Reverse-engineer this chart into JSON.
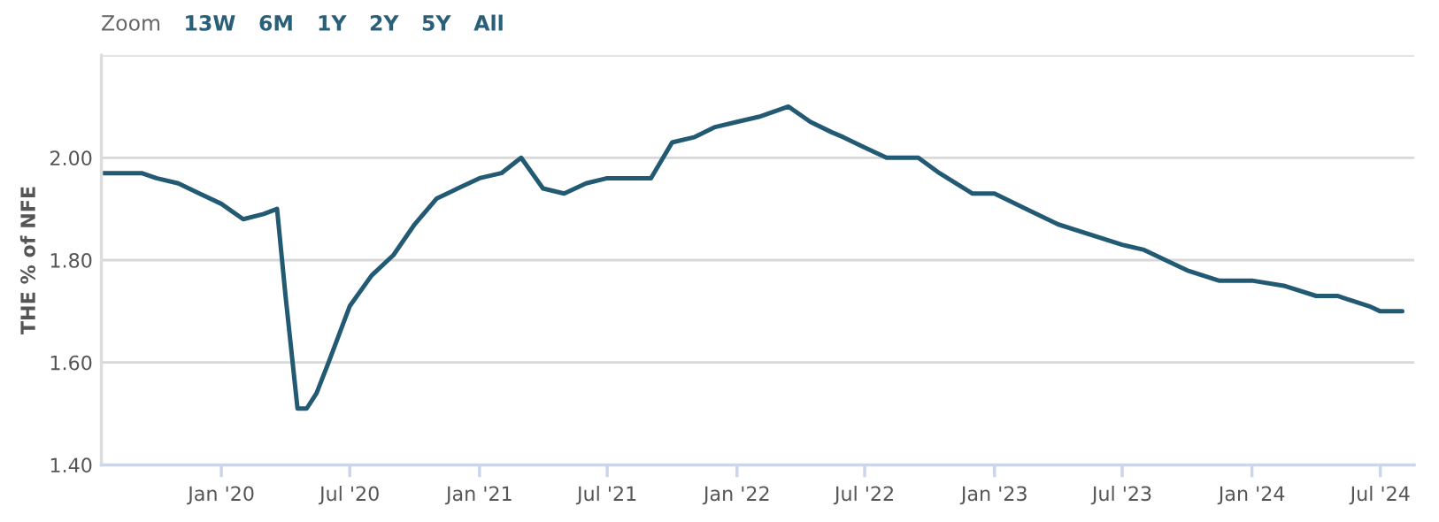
{
  "chart_data": {
    "type": "line",
    "ylabel": "THE % of NFE",
    "annotations": [
      "Zoom",
      "13W",
      "6M",
      "1Y",
      "2Y",
      "5Y",
      "All"
    ],
    "x": [
      "2019-07-15",
      "2019-08-15",
      "2019-09-10",
      "2019-10-01",
      "2019-11-01",
      "2019-12-01",
      "2020-01-01",
      "2020-02-01",
      "2020-03-01",
      "2020-03-20",
      "2020-04-01",
      "2020-04-18",
      "2020-05-01",
      "2020-05-15",
      "2020-06-01",
      "2020-07-01",
      "2020-08-01",
      "2020-09-01",
      "2020-10-01",
      "2020-11-01",
      "2020-12-01",
      "2021-01-01",
      "2021-02-01",
      "2021-03-01",
      "2021-04-01",
      "2021-05-01",
      "2021-06-01",
      "2021-07-01",
      "2021-09-01",
      "2021-10-01",
      "2021-11-01",
      "2021-12-01",
      "2022-01-01",
      "2022-02-01",
      "2022-03-15",
      "2022-04-15",
      "2022-05-15",
      "2022-06-01",
      "2022-07-01",
      "2022-08-01",
      "2022-09-15",
      "2022-10-15",
      "2022-12-01",
      "2023-01-01",
      "2023-02-15",
      "2023-04-01",
      "2023-07-01",
      "2023-08-01",
      "2023-10-01",
      "2023-11-15",
      "2024-01-01",
      "2024-02-15",
      "2024-04-01",
      "2024-05-01",
      "2024-06-15",
      "2024-07-01",
      "2024-08-01"
    ],
    "series": [
      {
        "color": "#235a73",
        "values": [
          1.97,
          1.97,
          1.97,
          1.96,
          1.95,
          1.93,
          1.91,
          1.88,
          1.89,
          1.9,
          1.73,
          1.51,
          1.51,
          1.54,
          1.6,
          1.71,
          1.77,
          1.81,
          1.87,
          1.92,
          1.94,
          1.96,
          1.97,
          2.0,
          1.94,
          1.93,
          1.95,
          1.96,
          1.96,
          2.03,
          2.04,
          2.06,
          2.07,
          2.08,
          2.1,
          2.07,
          2.05,
          2.04,
          2.02,
          2.0,
          2.0,
          1.97,
          1.93,
          1.93,
          1.9,
          1.87,
          1.83,
          1.82,
          1.78,
          1.76,
          1.76,
          1.75,
          1.73,
          1.73,
          1.71,
          1.7,
          1.7
        ]
      }
    ],
    "xlim": [
      "2019-07-15",
      "2024-08-18"
    ],
    "xticks": [
      {
        "value": "2020-01-01",
        "label": "Jan '20"
      },
      {
        "value": "2020-07-01",
        "label": "Jul '20"
      },
      {
        "value": "2021-01-01",
        "label": "Jan '21"
      },
      {
        "value": "2021-07-01",
        "label": "Jul '21"
      },
      {
        "value": "2022-01-01",
        "label": "Jan '22"
      },
      {
        "value": "2022-07-01",
        "label": "Jul '22"
      },
      {
        "value": "2023-01-01",
        "label": "Jan '23"
      },
      {
        "value": "2023-07-01",
        "label": "Jul '23"
      },
      {
        "value": "2024-01-01",
        "label": "Jan '24"
      },
      {
        "value": "2024-07-01",
        "label": "Jul '24"
      }
    ],
    "ylim": [
      1.4,
      2.2
    ],
    "yticks": [
      {
        "value": 1.4,
        "label": "1.40"
      },
      {
        "value": 1.6,
        "label": "1.60"
      },
      {
        "value": 1.8,
        "label": "1.80"
      },
      {
        "value": 2.0,
        "label": "2.00"
      },
      {
        "value": 2.2,
        "label": null
      }
    ],
    "grid": "y",
    "legend": false,
    "marker": "none",
    "line_style": "solid"
  }
}
